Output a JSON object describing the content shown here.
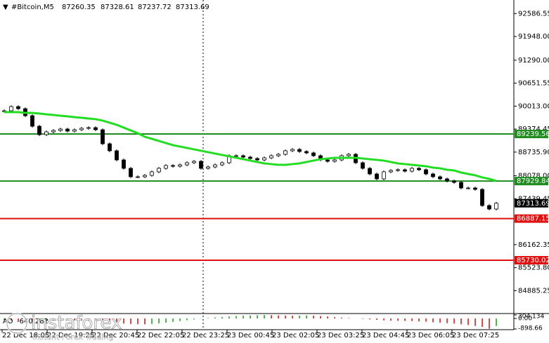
{
  "chart_data": {
    "type": "candlestick",
    "symbol": "#Bitcoin,M5",
    "ohlc": [
      87260.35,
      87328.61,
      87237.72,
      87313.69
    ],
    "values": [
      89883,
      90000,
      89942,
      89747,
      89454,
      89220,
      89298,
      89337,
      89376,
      89318,
      89357,
      89396,
      89415,
      89357,
      88967,
      88772,
      88518,
      88284,
      88050,
      88050,
      88089,
      88187,
      88284,
      88362,
      88342,
      88381,
      88440,
      88479,
      88284,
      88323,
      88381,
      88440,
      88635,
      88635,
      88596,
      88557,
      88518,
      88576,
      88635,
      88674,
      88772,
      88810,
      88752,
      88713,
      88635,
      88518,
      88479,
      88518,
      88635,
      88674,
      88440,
      88284,
      88128,
      87991,
      88187,
      88225,
      88245,
      88206,
      88284,
      88245,
      88128,
      88050,
      87991,
      87933,
      87894,
      87738,
      87738,
      87699,
      87250,
      87153,
      87313.69
    ],
    "ma_values": [
      89845,
      89845,
      89845,
      89825,
      89825,
      89806,
      89786,
      89767,
      89747,
      89728,
      89708,
      89689,
      89669,
      89650,
      89611,
      89552,
      89494,
      89416,
      89338,
      89260,
      89162,
      89104,
      89045,
      88987,
      88928,
      88889,
      88850,
      88811,
      88772,
      88733,
      88694,
      88655,
      88616,
      88577,
      88538,
      88499,
      88460,
      88421,
      88402,
      88382,
      88382,
      88402,
      88421,
      88460,
      88499,
      88538,
      88558,
      88577,
      88577,
      88577,
      88577,
      88558,
      88538,
      88519,
      88499,
      88460,
      88421,
      88402,
      88382,
      88362,
      88343,
      88304,
      88285,
      88245,
      88226,
      88167,
      88128,
      88090,
      88031,
      87992,
      87933
    ],
    "up_color": "#ffffff",
    "down_color": "#000000",
    "ma_color": "#22dd22",
    "ylim": [
      84248,
      92963
    ],
    "yticks": [
      92586.55,
      {
        "value": 91948,
        "label": "91948.00"
      },
      {
        "value": 91290,
        "label": "91290.00"
      },
      90651.55,
      {
        "value": 90013,
        "label": "90013.00"
      },
      89374.45,
      {
        "value": 88735.9,
        "label": "88735.90"
      },
      {
        "value": 88078,
        "label": "88078.00"
      },
      87439.45,
      86162.35,
      {
        "value": 85523.8,
        "label": "85523.80"
      },
      84885.25
    ],
    "levels": [
      {
        "value": 89239.56,
        "color": "#1e8c1e"
      },
      {
        "value": 87929.84,
        "color": "#1e8c1e"
      },
      {
        "value": 86887.15,
        "color": "#e01010"
      },
      {
        "value": 85730.02,
        "color": "#e01010"
      }
    ],
    "xticks": [
      "22 Dec 18:05",
      "22 Dec 19:25",
      "22 Dec 20:45",
      "22 Dec 22:05",
      "22 Dec 23:25",
      "23 Dec 00:45",
      "23 Dec 02:05",
      "23 Dec 03:25",
      "23 Dec 04:45",
      "23 Dec 06:05",
      "23 Dec 07:25"
    ],
    "ao": {
      "label": "AO",
      "values": [
        -150,
        -180,
        -200,
        -220,
        -250,
        -230,
        -210,
        -190,
        -170,
        -150,
        -160,
        -180,
        -200,
        -230,
        -270,
        -320,
        -380,
        -430,
        -470,
        -490,
        -500,
        -470,
        -420,
        -360,
        -290,
        -220,
        -150,
        -80,
        -20,
        40,
        90,
        130,
        170,
        210,
        240,
        260,
        280,
        300,
        290,
        270,
        250,
        240,
        250,
        260,
        240,
        210,
        170,
        120,
        80,
        40,
        0,
        -40,
        -80,
        -120,
        -160,
        -190,
        -200,
        -210,
        -220,
        -250,
        -280,
        -320,
        -360,
        -400,
        -440,
        -500,
        -560,
        -640,
        -720,
        -880,
        -640.282
      ],
      "ylim": [
        -898.66,
        304.134
      ],
      "yticks": [
        304.134,
        {
          "value": 0,
          "label": "0.00"
        },
        -898.66
      ],
      "up_color": "#1a9a1a",
      "down_color": "#d01010"
    },
    "watermark": {
      "brand": "instaforex",
      "tagline": "Instant Forex Trading"
    }
  }
}
